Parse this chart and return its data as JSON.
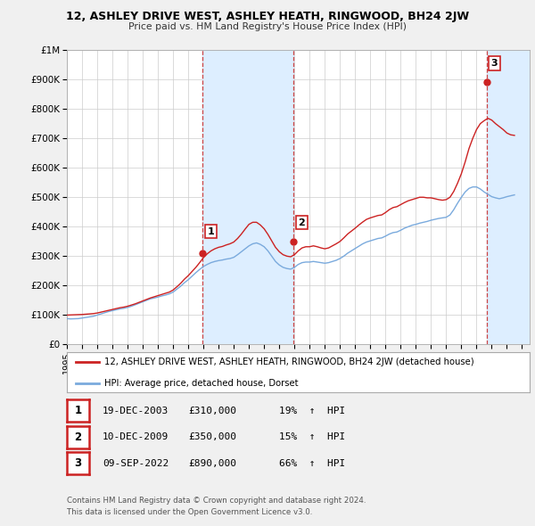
{
  "title": "12, ASHLEY DRIVE WEST, ASHLEY HEATH, RINGWOOD, BH24 2JW",
  "subtitle": "Price paid vs. HM Land Registry's House Price Index (HPI)",
  "ylim": [
    0,
    1000000
  ],
  "yticks": [
    0,
    100000,
    200000,
    300000,
    400000,
    500000,
    600000,
    700000,
    800000,
    900000,
    1000000
  ],
  "ytick_labels": [
    "£0",
    "£100K",
    "£200K",
    "£300K",
    "£400K",
    "£500K",
    "£600K",
    "£700K",
    "£800K",
    "£900K",
    "£1M"
  ],
  "xlim_start": 1995.0,
  "xlim_end": 2025.5,
  "xtick_years": [
    1995,
    1996,
    1997,
    1998,
    1999,
    2000,
    2001,
    2002,
    2003,
    2004,
    2005,
    2006,
    2007,
    2008,
    2009,
    2010,
    2011,
    2012,
    2013,
    2014,
    2015,
    2016,
    2017,
    2018,
    2019,
    2020,
    2021,
    2022,
    2023,
    2024,
    2025
  ],
  "hpi_color": "#7aaadd",
  "price_color": "#cc2222",
  "vline_color": "#cc4444",
  "shading_color": "#ddeeff",
  "bg_color": "#f0f0f0",
  "plot_bg_color": "#ffffff",
  "grid_color": "#cccccc",
  "legend_label_price": "12, ASHLEY DRIVE WEST, ASHLEY HEATH, RINGWOOD, BH24 2JW (detached house)",
  "legend_label_hpi": "HPI: Average price, detached house, Dorset",
  "sales": [
    {
      "num": 1,
      "date_str": "19-DEC-2003",
      "year": 2003.96,
      "price": 310000,
      "pct": "19%",
      "direction": "↑"
    },
    {
      "num": 2,
      "date_str": "10-DEC-2009",
      "year": 2009.94,
      "price": 350000,
      "pct": "15%",
      "direction": "↑"
    },
    {
      "num": 3,
      "date_str": "09-SEP-2022",
      "year": 2022.69,
      "price": 890000,
      "pct": "66%",
      "direction": "↑"
    }
  ],
  "footer1": "Contains HM Land Registry data © Crown copyright and database right 2024.",
  "footer2": "This data is licensed under the Open Government Licence v3.0.",
  "hpi_data_x": [
    1995.0,
    1995.25,
    1995.5,
    1995.75,
    1996.0,
    1996.25,
    1996.5,
    1996.75,
    1997.0,
    1997.25,
    1997.5,
    1997.75,
    1998.0,
    1998.25,
    1998.5,
    1998.75,
    1999.0,
    1999.25,
    1999.5,
    1999.75,
    2000.0,
    2000.25,
    2000.5,
    2000.75,
    2001.0,
    2001.25,
    2001.5,
    2001.75,
    2002.0,
    2002.25,
    2002.5,
    2002.75,
    2003.0,
    2003.25,
    2003.5,
    2003.75,
    2004.0,
    2004.25,
    2004.5,
    2004.75,
    2005.0,
    2005.25,
    2005.5,
    2005.75,
    2006.0,
    2006.25,
    2006.5,
    2006.75,
    2007.0,
    2007.25,
    2007.5,
    2007.75,
    2008.0,
    2008.25,
    2008.5,
    2008.75,
    2009.0,
    2009.25,
    2009.5,
    2009.75,
    2010.0,
    2010.25,
    2010.5,
    2010.75,
    2011.0,
    2011.25,
    2011.5,
    2011.75,
    2012.0,
    2012.25,
    2012.5,
    2012.75,
    2013.0,
    2013.25,
    2013.5,
    2013.75,
    2014.0,
    2014.25,
    2014.5,
    2014.75,
    2015.0,
    2015.25,
    2015.5,
    2015.75,
    2016.0,
    2016.25,
    2016.5,
    2016.75,
    2017.0,
    2017.25,
    2017.5,
    2017.75,
    2018.0,
    2018.25,
    2018.5,
    2018.75,
    2019.0,
    2019.25,
    2019.5,
    2019.75,
    2020.0,
    2020.25,
    2020.5,
    2020.75,
    2021.0,
    2021.25,
    2021.5,
    2021.75,
    2022.0,
    2022.25,
    2022.5,
    2022.75,
    2023.0,
    2023.25,
    2023.5,
    2023.75,
    2024.0,
    2024.25,
    2024.5
  ],
  "hpi_data_y": [
    88000,
    87000,
    87500,
    88000,
    90000,
    92000,
    94000,
    96000,
    100000,
    104000,
    108000,
    112000,
    115000,
    118000,
    121000,
    123000,
    126000,
    130000,
    135000,
    140000,
    145000,
    150000,
    155000,
    158000,
    161000,
    165000,
    168000,
    172000,
    178000,
    188000,
    198000,
    210000,
    220000,
    232000,
    244000,
    255000,
    265000,
    272000,
    278000,
    282000,
    285000,
    287000,
    290000,
    292000,
    296000,
    305000,
    315000,
    325000,
    335000,
    342000,
    345000,
    340000,
    332000,
    318000,
    300000,
    282000,
    270000,
    262000,
    258000,
    256000,
    262000,
    272000,
    278000,
    280000,
    280000,
    282000,
    280000,
    278000,
    276000,
    278000,
    282000,
    286000,
    292000,
    300000,
    310000,
    318000,
    326000,
    334000,
    342000,
    348000,
    352000,
    356000,
    360000,
    362000,
    368000,
    375000,
    380000,
    382000,
    388000,
    395000,
    400000,
    405000,
    408000,
    412000,
    415000,
    418000,
    422000,
    425000,
    428000,
    430000,
    432000,
    440000,
    458000,
    480000,
    500000,
    518000,
    530000,
    535000,
    535000,
    528000,
    518000,
    510000,
    502000,
    498000,
    495000,
    498000,
    502000,
    505000,
    508000
  ],
  "price_data_x": [
    1995.0,
    1995.25,
    1995.5,
    1995.75,
    1996.0,
    1996.25,
    1996.5,
    1996.75,
    1997.0,
    1997.25,
    1997.5,
    1997.75,
    1998.0,
    1998.25,
    1998.5,
    1998.75,
    1999.0,
    1999.25,
    1999.5,
    1999.75,
    2000.0,
    2000.25,
    2000.5,
    2000.75,
    2001.0,
    2001.25,
    2001.5,
    2001.75,
    2002.0,
    2002.25,
    2002.5,
    2002.75,
    2003.0,
    2003.25,
    2003.5,
    2003.75,
    2004.0,
    2004.25,
    2004.5,
    2004.75,
    2005.0,
    2005.25,
    2005.5,
    2005.75,
    2006.0,
    2006.25,
    2006.5,
    2006.75,
    2007.0,
    2007.25,
    2007.5,
    2007.75,
    2008.0,
    2008.25,
    2008.5,
    2008.75,
    2009.0,
    2009.25,
    2009.5,
    2009.75,
    2010.0,
    2010.25,
    2010.5,
    2010.75,
    2011.0,
    2011.25,
    2011.5,
    2011.75,
    2012.0,
    2012.25,
    2012.5,
    2012.75,
    2013.0,
    2013.25,
    2013.5,
    2013.75,
    2014.0,
    2014.25,
    2014.5,
    2014.75,
    2015.0,
    2015.25,
    2015.5,
    2015.75,
    2016.0,
    2016.25,
    2016.5,
    2016.75,
    2017.0,
    2017.25,
    2017.5,
    2017.75,
    2018.0,
    2018.25,
    2018.5,
    2018.75,
    2019.0,
    2019.25,
    2019.5,
    2019.75,
    2020.0,
    2020.25,
    2020.5,
    2020.75,
    2021.0,
    2021.25,
    2021.5,
    2021.75,
    2022.0,
    2022.25,
    2022.5,
    2022.75,
    2023.0,
    2023.25,
    2023.5,
    2023.75,
    2024.0,
    2024.25,
    2024.5
  ],
  "price_data_y": [
    100000,
    100500,
    101000,
    101500,
    102000,
    103000,
    104000,
    105000,
    107000,
    110000,
    113000,
    116000,
    119000,
    122000,
    125000,
    127000,
    130000,
    134000,
    138000,
    143000,
    148000,
    153000,
    158000,
    162000,
    166000,
    170000,
    174000,
    178000,
    185000,
    196000,
    208000,
    222000,
    234000,
    248000,
    262000,
    278000,
    295000,
    308000,
    318000,
    325000,
    330000,
    333000,
    338000,
    342000,
    348000,
    360000,
    375000,
    392000,
    408000,
    415000,
    415000,
    406000,
    393000,
    374000,
    352000,
    330000,
    315000,
    305000,
    300000,
    298000,
    305000,
    318000,
    328000,
    332000,
    332000,
    335000,
    332000,
    328000,
    325000,
    328000,
    335000,
    342000,
    350000,
    362000,
    375000,
    385000,
    395000,
    406000,
    416000,
    425000,
    430000,
    434000,
    438000,
    440000,
    448000,
    458000,
    465000,
    468000,
    475000,
    482000,
    488000,
    492000,
    496000,
    500000,
    500000,
    498000,
    498000,
    495000,
    492000,
    490000,
    492000,
    500000,
    520000,
    548000,
    580000,
    620000,
    665000,
    700000,
    730000,
    750000,
    760000,
    768000,
    762000,
    750000,
    740000,
    730000,
    718000,
    712000,
    710000
  ]
}
